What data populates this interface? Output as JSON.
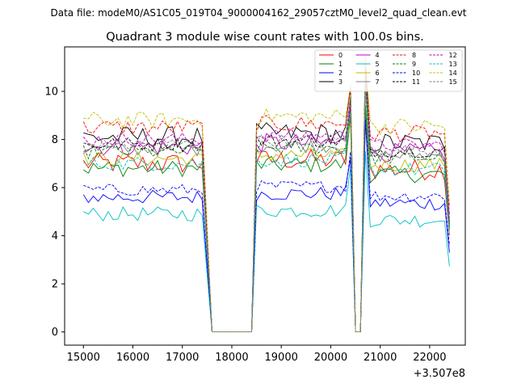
{
  "suptitle": "Data file: modeM0/AS1C05_019T04_9000004162_29057cztM0_level2_quad_clean.evt",
  "chart_data": {
    "type": "line",
    "title": "Quadrant 3 module wise count rates with 100.0s bins.",
    "xlabel": "",
    "ylabel": "",
    "x_offset_label": "+3.507e8",
    "xlim": [
      14620,
      22720
    ],
    "ylim": [
      -0.55,
      11.85
    ],
    "x_ticks": [
      15000,
      16000,
      17000,
      18000,
      19000,
      20000,
      21000,
      22000
    ],
    "x_tick_labels": [
      "15000",
      "16000",
      "17000",
      "18000",
      "19000",
      "20000",
      "21000",
      "22000"
    ],
    "y_ticks": [
      0,
      2,
      4,
      6,
      8,
      10
    ],
    "y_tick_labels": [
      "0",
      "2",
      "4",
      "6",
      "8",
      "10"
    ],
    "grid": false,
    "legend_position": "top-right",
    "legend_columns": 4,
    "segments": [
      {
        "x_start": 15000,
        "x_end": 17400,
        "step": 100
      },
      {
        "x_start": 17600,
        "x_end": 18400,
        "step": 100,
        "zero": true
      },
      {
        "x_start": 18500,
        "x_end": 20400,
        "step": 100
      },
      {
        "x_start": 20500,
        "x_end": 20600,
        "step": 100,
        "zero": true
      },
      {
        "x_start": 20700,
        "x_end": 22400,
        "step": 100
      }
    ],
    "series": [
      {
        "name": "0",
        "color": "#ff0000",
        "dash": "solid",
        "level": 7.0,
        "jitter": 0.45
      },
      {
        "name": "1",
        "color": "#008000",
        "dash": "solid",
        "level": 6.8,
        "jitter": 0.35
      },
      {
        "name": "2",
        "color": "#0000ff",
        "dash": "solid",
        "level": 5.6,
        "jitter": 0.3
      },
      {
        "name": "3",
        "color": "#000000",
        "dash": "solid",
        "level": 8.1,
        "jitter": 0.45
      },
      {
        "name": "4",
        "color": "#bf00bf",
        "dash": "solid",
        "level": 7.7,
        "jitter": 0.4
      },
      {
        "name": "5",
        "color": "#00bfbf",
        "dash": "solid",
        "level": 4.9,
        "jitter": 0.3
      },
      {
        "name": "6",
        "color": "#bfbf00",
        "dash": "solid",
        "level": 7.2,
        "jitter": 0.3
      },
      {
        "name": "7",
        "color": "#808080",
        "dash": "solid",
        "level": 7.6,
        "jitter": 0.3
      },
      {
        "name": "8",
        "color": "#ff0000",
        "dash": "dashed",
        "level": 8.5,
        "jitter": 0.35
      },
      {
        "name": "9",
        "color": "#008000",
        "dash": "dashed",
        "level": 7.5,
        "jitter": 0.3
      },
      {
        "name": "10",
        "color": "#0000ff",
        "dash": "dashed",
        "level": 5.9,
        "jitter": 0.25
      },
      {
        "name": "11",
        "color": "#000000",
        "dash": "dashed",
        "level": 7.8,
        "jitter": 0.3
      },
      {
        "name": "12",
        "color": "#bf00bf",
        "dash": "dashed",
        "level": 8.0,
        "jitter": 0.3
      },
      {
        "name": "13",
        "color": "#00bfbf",
        "dash": "dashed",
        "level": 7.0,
        "jitter": 0.3
      },
      {
        "name": "14",
        "color": "#bfbf00",
        "dash": "dashed",
        "level": 8.8,
        "jitter": 0.35
      },
      {
        "name": "15",
        "color": "#808080",
        "dash": "dashed",
        "level": 7.8,
        "jitter": 0.3
      }
    ]
  }
}
